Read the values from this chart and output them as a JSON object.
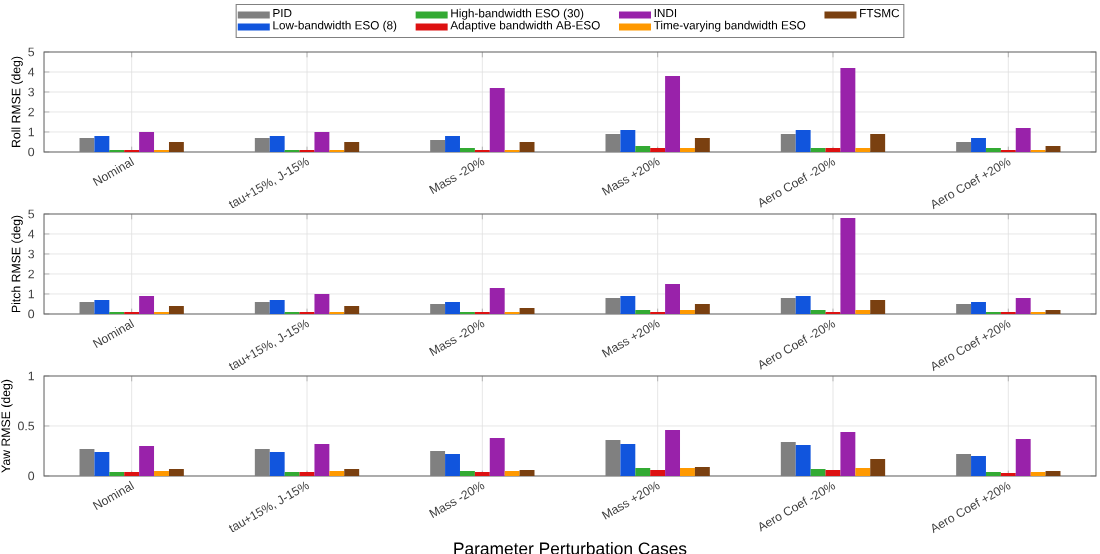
{
  "chart_data": [
    {
      "type": "bar",
      "ylabel": "Roll RMSE (deg)",
      "categories": [
        "Nominal",
        "tau+15%, J-15%",
        "Mass -20%",
        "Mass +20%",
        "Aero Coef -20%",
        "Aero Coef +20%"
      ],
      "ylim": [
        0,
        5
      ],
      "yticks": [
        0,
        1,
        2,
        3,
        4,
        5
      ],
      "grid": true,
      "legend": "top",
      "series": [
        {
          "name": "PID",
          "color": "#808080",
          "values": [
            0.7,
            0.7,
            0.6,
            0.9,
            0.9,
            0.5
          ]
        },
        {
          "name": "Low-bandwidth ESO (8)",
          "color": "#1155dd",
          "values": [
            0.8,
            0.8,
            0.8,
            1.1,
            1.1,
            0.7
          ]
        },
        {
          "name": "High-bandwidth ESO (30)",
          "color": "#33aa33",
          "values": [
            0.1,
            0.1,
            0.2,
            0.3,
            0.2,
            0.2
          ]
        },
        {
          "name": "Adaptive bandwidth AB-ESO",
          "color": "#dd1111",
          "values": [
            0.1,
            0.1,
            0.1,
            0.2,
            0.2,
            0.1
          ]
        },
        {
          "name": "INDI",
          "color": "#9922aa",
          "values": [
            1.0,
            1.0,
            3.2,
            3.8,
            4.2,
            1.2
          ]
        },
        {
          "name": "Time-varying bandwidth ESO",
          "color": "#ff9900",
          "values": [
            0.1,
            0.1,
            0.1,
            0.2,
            0.2,
            0.1
          ]
        },
        {
          "name": "FTSMC",
          "color": "#7a4010",
          "values": [
            0.5,
            0.5,
            0.5,
            0.7,
            0.9,
            0.3
          ]
        }
      ]
    },
    {
      "type": "bar",
      "ylabel": "Pitch RMSE (deg)",
      "categories": [
        "Nominal",
        "tau+15%, J-15%",
        "Mass -20%",
        "Mass +20%",
        "Aero Coef -20%",
        "Aero Coef +20%"
      ],
      "ylim": [
        0,
        5
      ],
      "yticks": [
        0,
        1,
        2,
        3,
        4,
        5
      ],
      "grid": true,
      "series": [
        {
          "color": "#808080",
          "values": [
            0.6,
            0.6,
            0.5,
            0.8,
            0.8,
            0.5
          ]
        },
        {
          "color": "#1155dd",
          "values": [
            0.7,
            0.7,
            0.6,
            0.9,
            0.9,
            0.6
          ]
        },
        {
          "color": "#33aa33",
          "values": [
            0.1,
            0.1,
            0.1,
            0.2,
            0.2,
            0.1
          ]
        },
        {
          "color": "#dd1111",
          "values": [
            0.1,
            0.1,
            0.1,
            0.1,
            0.1,
            0.1
          ]
        },
        {
          "color": "#9922aa",
          "values": [
            0.9,
            1.0,
            1.3,
            1.5,
            4.8,
            0.8
          ]
        },
        {
          "color": "#ff9900",
          "values": [
            0.1,
            0.1,
            0.1,
            0.2,
            0.2,
            0.1
          ]
        },
        {
          "color": "#7a4010",
          "values": [
            0.4,
            0.4,
            0.3,
            0.5,
            0.7,
            0.2
          ]
        }
      ]
    },
    {
      "type": "bar",
      "ylabel": "Yaw RMSE (deg)",
      "xlabel": "Parameter Perturbation Cases",
      "categories": [
        "Nominal",
        "tau+15%, J-15%",
        "Mass -20%",
        "Mass +20%",
        "Aero Coef -20%",
        "Aero Coef +20%"
      ],
      "ylim": [
        0,
        1
      ],
      "yticks": [
        0,
        0.5,
        1
      ],
      "grid": true,
      "series": [
        {
          "color": "#808080",
          "values": [
            0.27,
            0.27,
            0.25,
            0.36,
            0.34,
            0.22
          ]
        },
        {
          "color": "#1155dd",
          "values": [
            0.24,
            0.24,
            0.22,
            0.32,
            0.31,
            0.2
          ]
        },
        {
          "color": "#33aa33",
          "values": [
            0.04,
            0.04,
            0.05,
            0.08,
            0.07,
            0.04
          ]
        },
        {
          "color": "#dd1111",
          "values": [
            0.04,
            0.04,
            0.04,
            0.06,
            0.06,
            0.03
          ]
        },
        {
          "color": "#9922aa",
          "values": [
            0.3,
            0.32,
            0.38,
            0.46,
            0.44,
            0.37
          ]
        },
        {
          "color": "#ff9900",
          "values": [
            0.05,
            0.05,
            0.05,
            0.08,
            0.08,
            0.04
          ]
        },
        {
          "color": "#7a4010",
          "values": [
            0.07,
            0.07,
            0.06,
            0.09,
            0.17,
            0.05
          ]
        }
      ]
    }
  ]
}
